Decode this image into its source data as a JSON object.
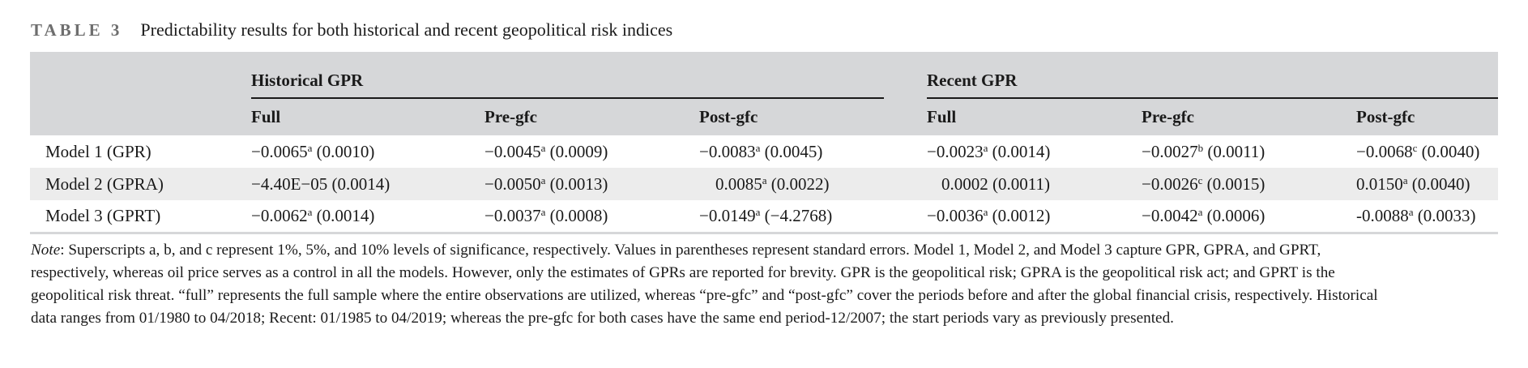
{
  "caption": {
    "label": "TABLE 3",
    "title": "Predictability results for both historical and recent geopolitical risk indices"
  },
  "table": {
    "group_headers": [
      "Historical GPR",
      "Recent GPR"
    ],
    "sub_headers": [
      "Full",
      "Pre-gfc",
      "Post-gfc",
      "Full",
      "Pre-gfc",
      "Post-gfc"
    ],
    "rows": [
      {
        "label": "Model 1 (GPR)",
        "cells": [
          {
            "v": "−0.0065",
            "sup": "a",
            "se": "(0.0010)"
          },
          {
            "v": "−0.0045",
            "sup": "a",
            "se": "(0.0009)"
          },
          {
            "v": "−0.0083",
            "sup": "a",
            "se": "(0.0045)"
          },
          {
            "v": "−0.0023",
            "sup": "a",
            "se": "(0.0014)"
          },
          {
            "v": "−0.0027",
            "sup": "b",
            "se": "(0.0011)"
          },
          {
            "v": "−0.0068",
            "sup": "c",
            "se": "(0.0040)"
          }
        ]
      },
      {
        "label": "Model 2 (GPRA)",
        "cells": [
          {
            "v": "−4.40E−05",
            "sup": "",
            "se": "(0.0014)"
          },
          {
            "v": "−0.0050",
            "sup": "a",
            "se": "(0.0013)"
          },
          {
            "v": "0.0085",
            "sup": "a",
            "se": "(0.0022)"
          },
          {
            "v": "0.0002",
            "sup": "",
            "se": "(0.0011)"
          },
          {
            "v": "−0.0026",
            "sup": "c",
            "se": "(0.0015)"
          },
          {
            "v": "0.0150",
            "sup": "a",
            "se": "(0.0040)"
          }
        ]
      },
      {
        "label": "Model 3 (GPRT)",
        "cells": [
          {
            "v": "−0.0062",
            "sup": "a",
            "se": "(0.0014)"
          },
          {
            "v": "−0.0037",
            "sup": "a",
            "se": "(0.0008)"
          },
          {
            "v": "−0.0149",
            "sup": "a",
            "se": "(−4.2768)"
          },
          {
            "v": "−0.0036",
            "sup": "a",
            "se": "(0.0012)"
          },
          {
            "v": "−0.0042",
            "sup": "a",
            "se": "(0.0006)"
          },
          {
            "v": "-0.0088",
            "sup": "a",
            "se": "(0.0033)"
          }
        ]
      }
    ]
  },
  "note": {
    "label": "Note",
    "lines": [
      ": Superscripts a, b, and c represent 1%, 5%, and 10% levels of significance, respectively. Values in parentheses represent standard errors. Model 1, Model 2, and Model 3 capture GPR, GPRA, and GPRT,",
      "respectively, whereas oil price serves as a control in all the models. However, only the estimates of GPRs are reported for brevity. GPR is the geopolitical risk; GPRA is the geopolitical risk act; and GPRT is the",
      "geopolitical risk threat. “full” represents the full sample where the entire observations are utilized, whereas “pre-gfc” and “post-gfc” cover the periods before and after the global financial crisis, respectively. Historical",
      "data ranges from 01/1980 to 04/2018; Recent: 01/1985 to 04/2019; whereas the pre-gfc for both cases have the same end period-12/2007; the start periods vary as previously presented."
    ]
  }
}
